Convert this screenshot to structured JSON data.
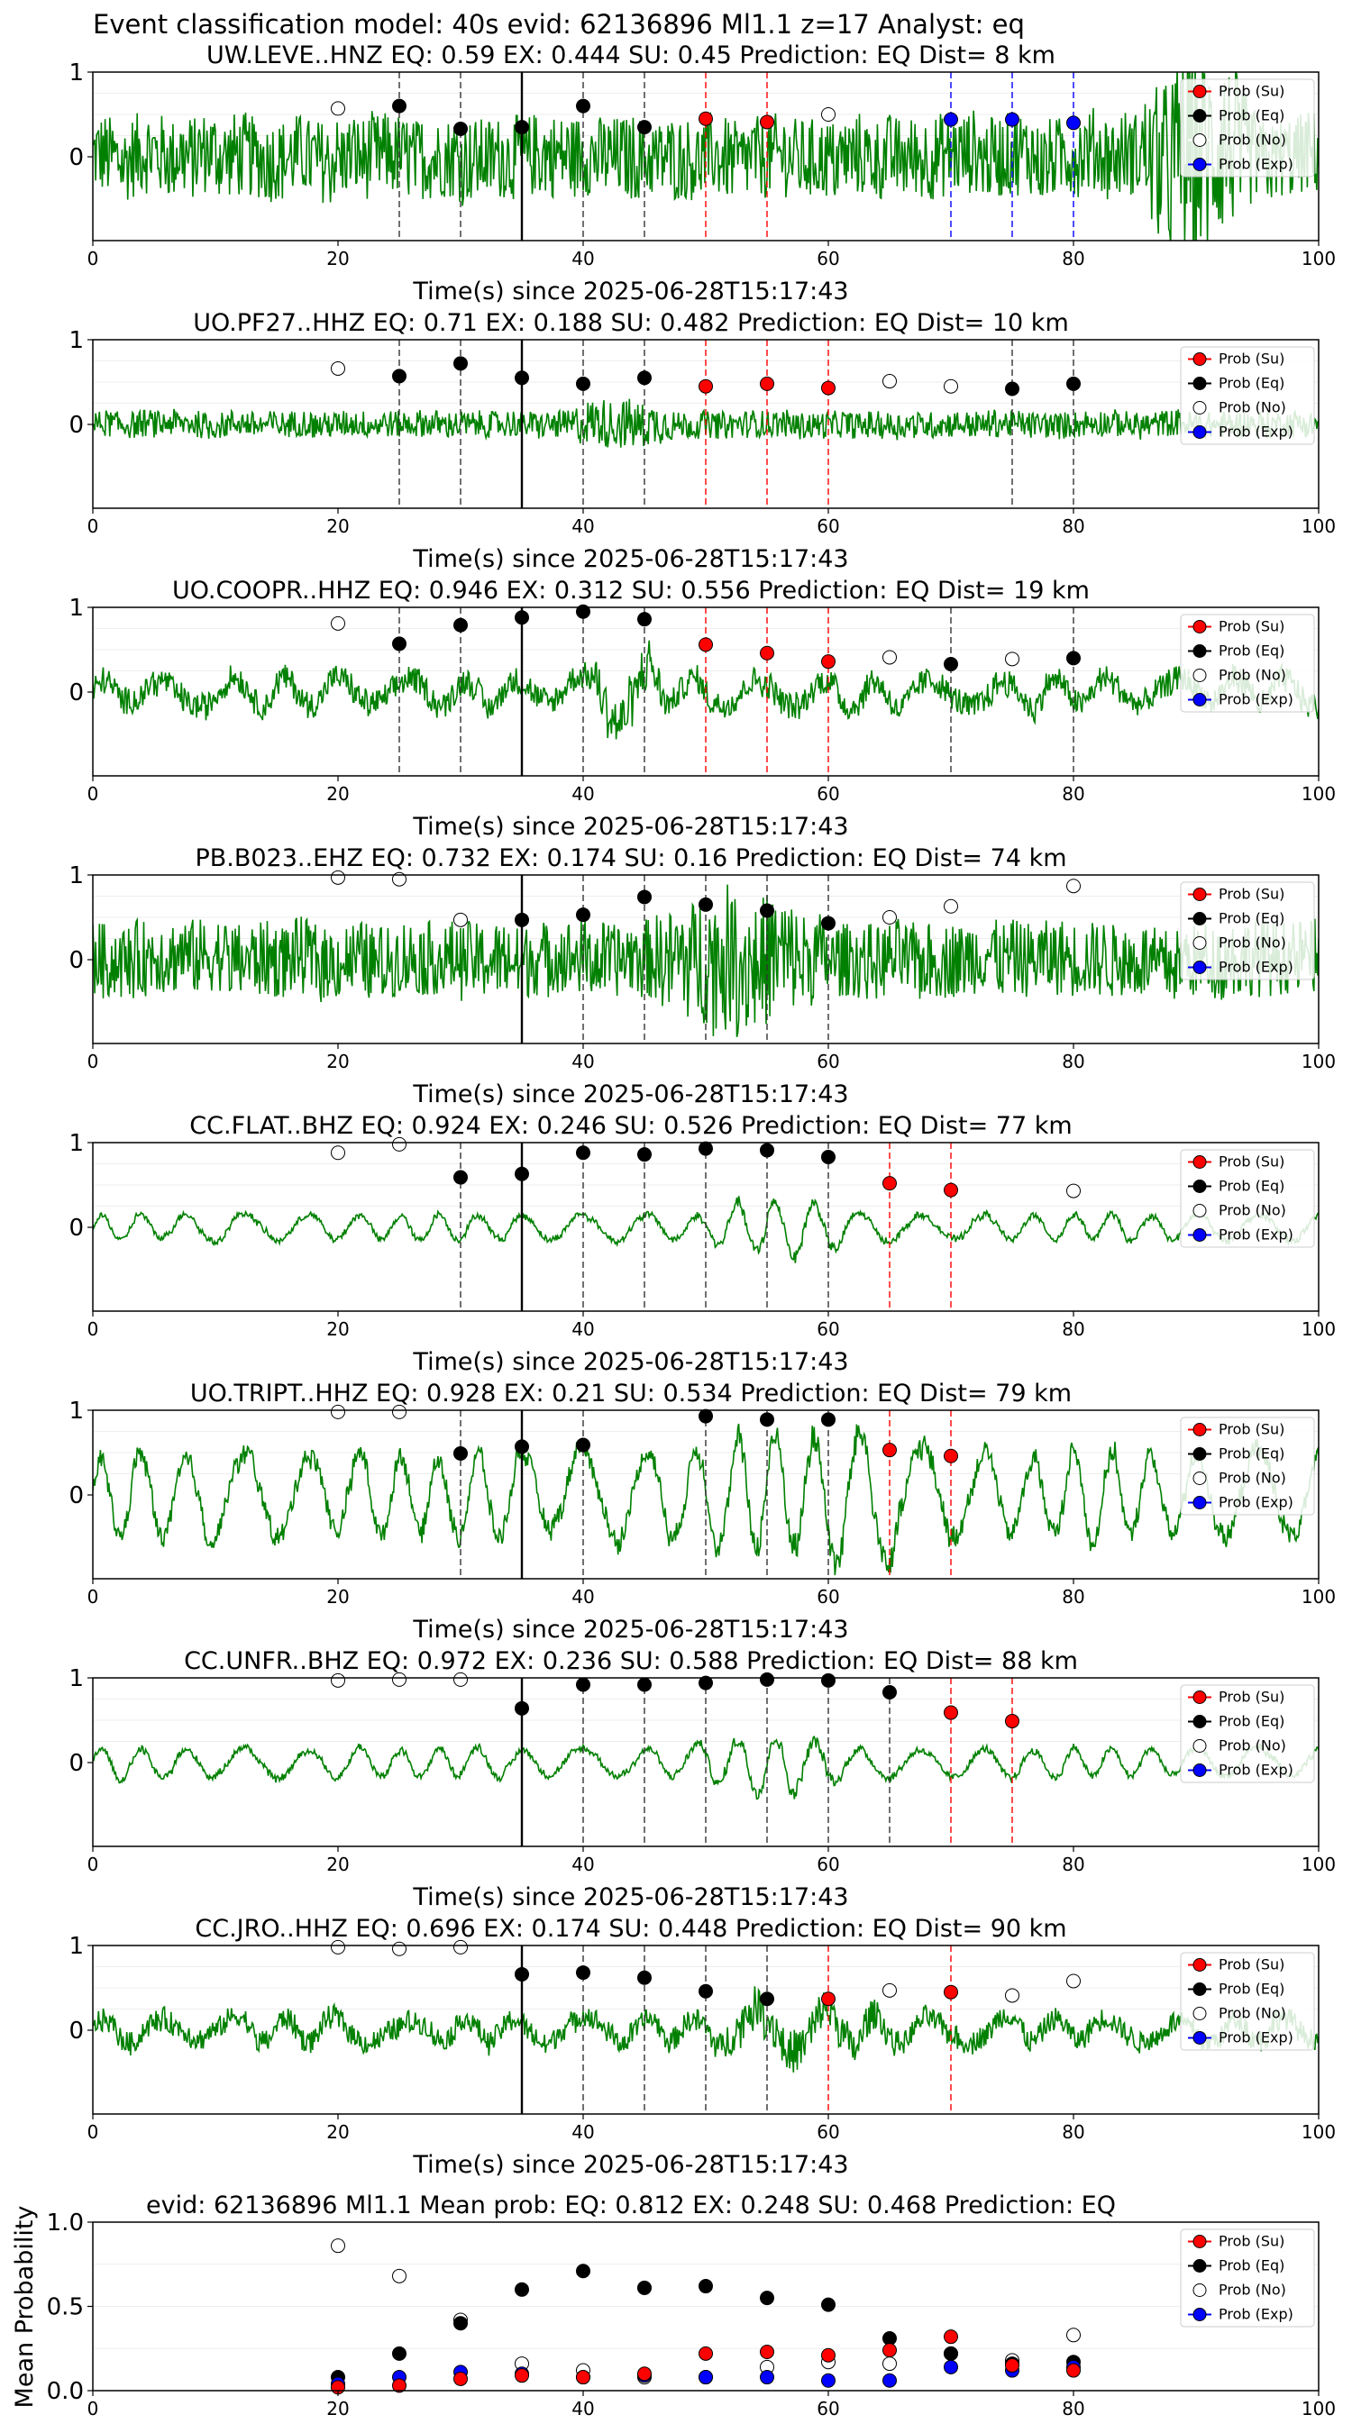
{
  "suptitle": "Event classification model: 40s evid: 62136896 Ml1.1 z=17 Analyst: eq",
  "xlabel": "Time(s) since 2025-06-28T15:17:43",
  "mean_ylabel": "Mean Probability",
  "legend": [
    "Prob (Su)",
    "Prob (Eq)",
    "Prob (No)",
    "Prob (Exp)"
  ],
  "colors": {
    "su": "#ff0000",
    "eq": "#000000",
    "no": "#ffffff",
    "exp": "#0000ff",
    "trace": "#008000"
  },
  "chart_data": [
    {
      "type": "line",
      "title": "UW.LEVE..HNZ   EQ: 0.59  EX: 0.444  SU: 0.45   Prediction: EQ    Dist= 8 km",
      "xlim": [
        0,
        100
      ],
      "x_ticks": [
        "0",
        "20",
        "40",
        "60",
        "80",
        "100"
      ],
      "y_ticks": [
        "0",
        "1"
      ],
      "xlabel": "Time(s) since 2025-06-28T15:17:43",
      "pick_time": 35,
      "amp": 0.55,
      "style": "hf",
      "burst": [
        85,
        95,
        1.6
      ],
      "trace_name": "waveform",
      "points": [
        {
          "t": 20,
          "p": 0.57,
          "c": "no"
        },
        {
          "t": 25,
          "p": 0.6,
          "c": "eq"
        },
        {
          "t": 30,
          "p": 0.33,
          "c": "eq"
        },
        {
          "t": 35,
          "p": 0.35,
          "c": "eq"
        },
        {
          "t": 40,
          "p": 0.6,
          "c": "eq"
        },
        {
          "t": 45,
          "p": 0.35,
          "c": "eq"
        },
        {
          "t": 50,
          "p": 0.45,
          "c": "su"
        },
        {
          "t": 55,
          "p": 0.41,
          "c": "su"
        },
        {
          "t": 60,
          "p": 0.5,
          "c": "no"
        },
        {
          "t": 70,
          "p": 0.44,
          "c": "exp"
        },
        {
          "t": 75,
          "p": 0.44,
          "c": "exp"
        },
        {
          "t": 80,
          "p": 0.4,
          "c": "exp"
        }
      ]
    },
    {
      "type": "line",
      "title": "UO.PF27..HHZ   EQ: 0.71  EX: 0.188  SU: 0.482   Prediction: EQ    Dist= 10 km",
      "xlim": [
        0,
        100
      ],
      "x_ticks": [
        "0",
        "20",
        "40",
        "60",
        "80",
        "100"
      ],
      "y_ticks": [
        "0",
        "1"
      ],
      "xlabel": "Time(s) since 2025-06-28T15:17:43",
      "pick_time": 35,
      "amp": 0.18,
      "style": "hf",
      "burst": [
        38,
        48,
        0.9
      ],
      "trace_name": "waveform",
      "points": [
        {
          "t": 20,
          "p": 0.66,
          "c": "no"
        },
        {
          "t": 25,
          "p": 0.57,
          "c": "eq"
        },
        {
          "t": 30,
          "p": 0.72,
          "c": "eq"
        },
        {
          "t": 35,
          "p": 0.55,
          "c": "eq"
        },
        {
          "t": 40,
          "p": 0.48,
          "c": "eq"
        },
        {
          "t": 45,
          "p": 0.55,
          "c": "eq"
        },
        {
          "t": 50,
          "p": 0.45,
          "c": "su"
        },
        {
          "t": 55,
          "p": 0.48,
          "c": "su"
        },
        {
          "t": 60,
          "p": 0.43,
          "c": "su"
        },
        {
          "t": 65,
          "p": 0.51,
          "c": "no"
        },
        {
          "t": 70,
          "p": 0.45,
          "c": "no"
        },
        {
          "t": 75,
          "p": 0.42,
          "c": "eq"
        },
        {
          "t": 80,
          "p": 0.48,
          "c": "eq"
        }
      ]
    },
    {
      "type": "line",
      "title": "UO.COOPR..HHZ   EQ: 0.946  EX: 0.312  SU: 0.556   Prediction: EQ    Dist= 19 km",
      "xlim": [
        0,
        100
      ],
      "x_ticks": [
        "0",
        "20",
        "40",
        "60",
        "80",
        "100"
      ],
      "y_ticks": [
        "0",
        "1"
      ],
      "xlabel": "Time(s) since 2025-06-28T15:17:43",
      "pick_time": 35,
      "amp": 0.35,
      "style": "mix",
      "burst": [
        40,
        47,
        1.2
      ],
      "trace_name": "waveform",
      "points": [
        {
          "t": 20,
          "p": 0.81,
          "c": "no"
        },
        {
          "t": 25,
          "p": 0.57,
          "c": "eq"
        },
        {
          "t": 30,
          "p": 0.79,
          "c": "eq"
        },
        {
          "t": 35,
          "p": 0.88,
          "c": "eq"
        },
        {
          "t": 40,
          "p": 0.95,
          "c": "eq"
        },
        {
          "t": 45,
          "p": 0.86,
          "c": "eq"
        },
        {
          "t": 50,
          "p": 0.56,
          "c": "su"
        },
        {
          "t": 55,
          "p": 0.46,
          "c": "su"
        },
        {
          "t": 60,
          "p": 0.36,
          "c": "su"
        },
        {
          "t": 65,
          "p": 0.41,
          "c": "no"
        },
        {
          "t": 70,
          "p": 0.33,
          "c": "eq"
        },
        {
          "t": 75,
          "p": 0.39,
          "c": "no"
        },
        {
          "t": 80,
          "p": 0.4,
          "c": "eq"
        }
      ]
    },
    {
      "type": "line",
      "title": "PB.B023..EHZ   EQ: 0.732  EX: 0.174  SU: 0.16   Prediction: EQ    Dist= 74 km",
      "xlim": [
        0,
        100
      ],
      "x_ticks": [
        "0",
        "20",
        "40",
        "60",
        "80",
        "100"
      ],
      "y_ticks": [
        "0",
        "1"
      ],
      "xlabel": "Time(s) since 2025-06-28T15:17:43",
      "pick_time": 35,
      "amp": 0.5,
      "style": "hf",
      "burst": [
        45,
        60,
        0.9
      ],
      "trace_name": "waveform",
      "points": [
        {
          "t": 20,
          "p": 0.97,
          "c": "no"
        },
        {
          "t": 25,
          "p": 0.95,
          "c": "no"
        },
        {
          "t": 30,
          "p": 0.47,
          "c": "no"
        },
        {
          "t": 35,
          "p": 0.47,
          "c": "eq"
        },
        {
          "t": 40,
          "p": 0.53,
          "c": "eq"
        },
        {
          "t": 45,
          "p": 0.74,
          "c": "eq"
        },
        {
          "t": 50,
          "p": 0.65,
          "c": "eq"
        },
        {
          "t": 55,
          "p": 0.58,
          "c": "eq"
        },
        {
          "t": 60,
          "p": 0.43,
          "c": "eq"
        },
        {
          "t": 65,
          "p": 0.5,
          "c": "no"
        },
        {
          "t": 70,
          "p": 0.63,
          "c": "no"
        },
        {
          "t": 80,
          "p": 0.87,
          "c": "no"
        }
      ]
    },
    {
      "type": "line",
      "title": "CC.FLAT..BHZ   EQ: 0.924  EX: 0.246  SU: 0.526   Prediction: EQ    Dist= 77 km",
      "xlim": [
        0,
        100
      ],
      "x_ticks": [
        "0",
        "20",
        "40",
        "60",
        "80",
        "100"
      ],
      "y_ticks": [
        "0",
        "1"
      ],
      "xlabel": "Time(s) since 2025-06-28T15:17:43",
      "pick_time": 35,
      "amp": 0.2,
      "style": "lf",
      "burst": [
        50,
        63,
        1.1
      ],
      "trace_name": "waveform",
      "points": [
        {
          "t": 20,
          "p": 0.88,
          "c": "no"
        },
        {
          "t": 25,
          "p": 0.98,
          "c": "no"
        },
        {
          "t": 30,
          "p": 0.59,
          "c": "eq"
        },
        {
          "t": 35,
          "p": 0.63,
          "c": "eq"
        },
        {
          "t": 40,
          "p": 0.88,
          "c": "eq"
        },
        {
          "t": 45,
          "p": 0.86,
          "c": "eq"
        },
        {
          "t": 50,
          "p": 0.93,
          "c": "eq"
        },
        {
          "t": 55,
          "p": 0.91,
          "c": "eq"
        },
        {
          "t": 60,
          "p": 0.83,
          "c": "eq"
        },
        {
          "t": 65,
          "p": 0.52,
          "c": "su"
        },
        {
          "t": 70,
          "p": 0.44,
          "c": "su"
        },
        {
          "t": 80,
          "p": 0.43,
          "c": "no"
        }
      ]
    },
    {
      "type": "line",
      "title": "UO.TRIPT..HHZ   EQ: 0.928  EX: 0.21  SU: 0.534   Prediction: EQ    Dist= 79 km",
      "xlim": [
        0,
        100
      ],
      "x_ticks": [
        "0",
        "20",
        "40",
        "60",
        "80",
        "100"
      ],
      "y_ticks": [
        "0",
        "1"
      ],
      "xlabel": "Time(s) since 2025-06-28T15:17:43",
      "pick_time": 35,
      "amp": 0.65,
      "style": "lf",
      "burst": [
        48,
        72,
        0.5
      ],
      "trace_name": "waveform",
      "points": [
        {
          "t": 20,
          "p": 0.98,
          "c": "no"
        },
        {
          "t": 25,
          "p": 0.98,
          "c": "no"
        },
        {
          "t": 30,
          "p": 0.49,
          "c": "eq"
        },
        {
          "t": 35,
          "p": 0.57,
          "c": "eq"
        },
        {
          "t": 40,
          "p": 0.59,
          "c": "eq"
        },
        {
          "t": 50,
          "p": 0.93,
          "c": "eq"
        },
        {
          "t": 55,
          "p": 0.89,
          "c": "eq"
        },
        {
          "t": 60,
          "p": 0.89,
          "c": "eq"
        },
        {
          "t": 65,
          "p": 0.53,
          "c": "su"
        },
        {
          "t": 70,
          "p": 0.46,
          "c": "su"
        }
      ]
    },
    {
      "type": "line",
      "title": "CC.UNFR..BHZ   EQ: 0.972  EX: 0.236  SU: 0.588   Prediction: EQ    Dist= 88 km",
      "xlim": [
        0,
        100
      ],
      "x_ticks": [
        "0",
        "20",
        "40",
        "60",
        "80",
        "100"
      ],
      "y_ticks": [
        "0",
        "1"
      ],
      "xlabel": "Time(s) since 2025-06-28T15:17:43",
      "pick_time": 35,
      "amp": 0.22,
      "style": "lf",
      "burst": [
        48,
        63,
        1.0
      ],
      "trace_name": "waveform",
      "points": [
        {
          "t": 20,
          "p": 0.97,
          "c": "no"
        },
        {
          "t": 25,
          "p": 0.98,
          "c": "no"
        },
        {
          "t": 30,
          "p": 0.98,
          "c": "no"
        },
        {
          "t": 35,
          "p": 0.64,
          "c": "eq"
        },
        {
          "t": 40,
          "p": 0.92,
          "c": "eq"
        },
        {
          "t": 45,
          "p": 0.92,
          "c": "eq"
        },
        {
          "t": 50,
          "p": 0.94,
          "c": "eq"
        },
        {
          "t": 55,
          "p": 0.98,
          "c": "eq"
        },
        {
          "t": 60,
          "p": 0.97,
          "c": "eq"
        },
        {
          "t": 65,
          "p": 0.83,
          "c": "eq"
        },
        {
          "t": 70,
          "p": 0.59,
          "c": "su"
        },
        {
          "t": 75,
          "p": 0.49,
          "c": "su"
        }
      ]
    },
    {
      "type": "line",
      "title": "CC.JRO..HHZ   EQ: 0.696  EX: 0.174  SU: 0.448   Prediction: EQ    Dist= 90 km",
      "xlim": [
        0,
        100
      ],
      "x_ticks": [
        "0",
        "20",
        "40",
        "60",
        "80",
        "100"
      ],
      "y_ticks": [
        "0",
        "1"
      ],
      "xlabel": "Time(s) since 2025-06-28T15:17:43",
      "pick_time": 35,
      "amp": 0.3,
      "style": "mix",
      "burst": [
        49,
        66,
        1.0
      ],
      "trace_name": "waveform",
      "points": [
        {
          "t": 20,
          "p": 0.98,
          "c": "no"
        },
        {
          "t": 25,
          "p": 0.96,
          "c": "no"
        },
        {
          "t": 30,
          "p": 0.98,
          "c": "no"
        },
        {
          "t": 35,
          "p": 0.66,
          "c": "eq"
        },
        {
          "t": 40,
          "p": 0.68,
          "c": "eq"
        },
        {
          "t": 45,
          "p": 0.62,
          "c": "eq"
        },
        {
          "t": 50,
          "p": 0.46,
          "c": "eq"
        },
        {
          "t": 55,
          "p": 0.37,
          "c": "eq"
        },
        {
          "t": 60,
          "p": 0.37,
          "c": "su"
        },
        {
          "t": 65,
          "p": 0.47,
          "c": "no"
        },
        {
          "t": 70,
          "p": 0.45,
          "c": "su"
        },
        {
          "t": 75,
          "p": 0.41,
          "c": "no"
        },
        {
          "t": 80,
          "p": 0.58,
          "c": "no"
        }
      ]
    },
    {
      "type": "scatter",
      "title": "evid: 62136896  Ml1.1   Mean prob:   EQ: 0.812  EX: 0.248  SU: 0.468   Prediction: EQ",
      "xlim": [
        0,
        100
      ],
      "ylim": [
        0,
        1
      ],
      "x_ticks": [
        "0",
        "20",
        "40",
        "60",
        "80",
        "100"
      ],
      "y_ticks": [
        "0.0",
        "0.5",
        "1.0"
      ],
      "ylabel": "Mean Probability",
      "x": [
        20,
        25,
        30,
        35,
        40,
        45,
        50,
        55,
        60,
        65,
        70,
        75,
        80
      ],
      "series": [
        {
          "name": "Prob (No)",
          "values": [
            0.86,
            0.68,
            0.42,
            0.16,
            0.12,
            0.08,
            0.08,
            0.14,
            0.17,
            0.16,
            0.22,
            0.18,
            0.33
          ]
        },
        {
          "name": "Prob (Eq)",
          "values": [
            0.08,
            0.22,
            0.4,
            0.6,
            0.71,
            0.61,
            0.62,
            0.55,
            0.51,
            0.31,
            0.22,
            0.16,
            0.17
          ]
        },
        {
          "name": "Prob (Exp)",
          "values": [
            0.04,
            0.08,
            0.11,
            0.1,
            0.08,
            0.09,
            0.08,
            0.08,
            0.06,
            0.06,
            0.14,
            0.12,
            0.14
          ]
        },
        {
          "name": "Prob (Su)",
          "values": [
            0.02,
            0.03,
            0.07,
            0.09,
            0.08,
            0.1,
            0.22,
            0.23,
            0.21,
            0.24,
            0.32,
            0.15,
            0.12
          ]
        }
      ]
    }
  ]
}
